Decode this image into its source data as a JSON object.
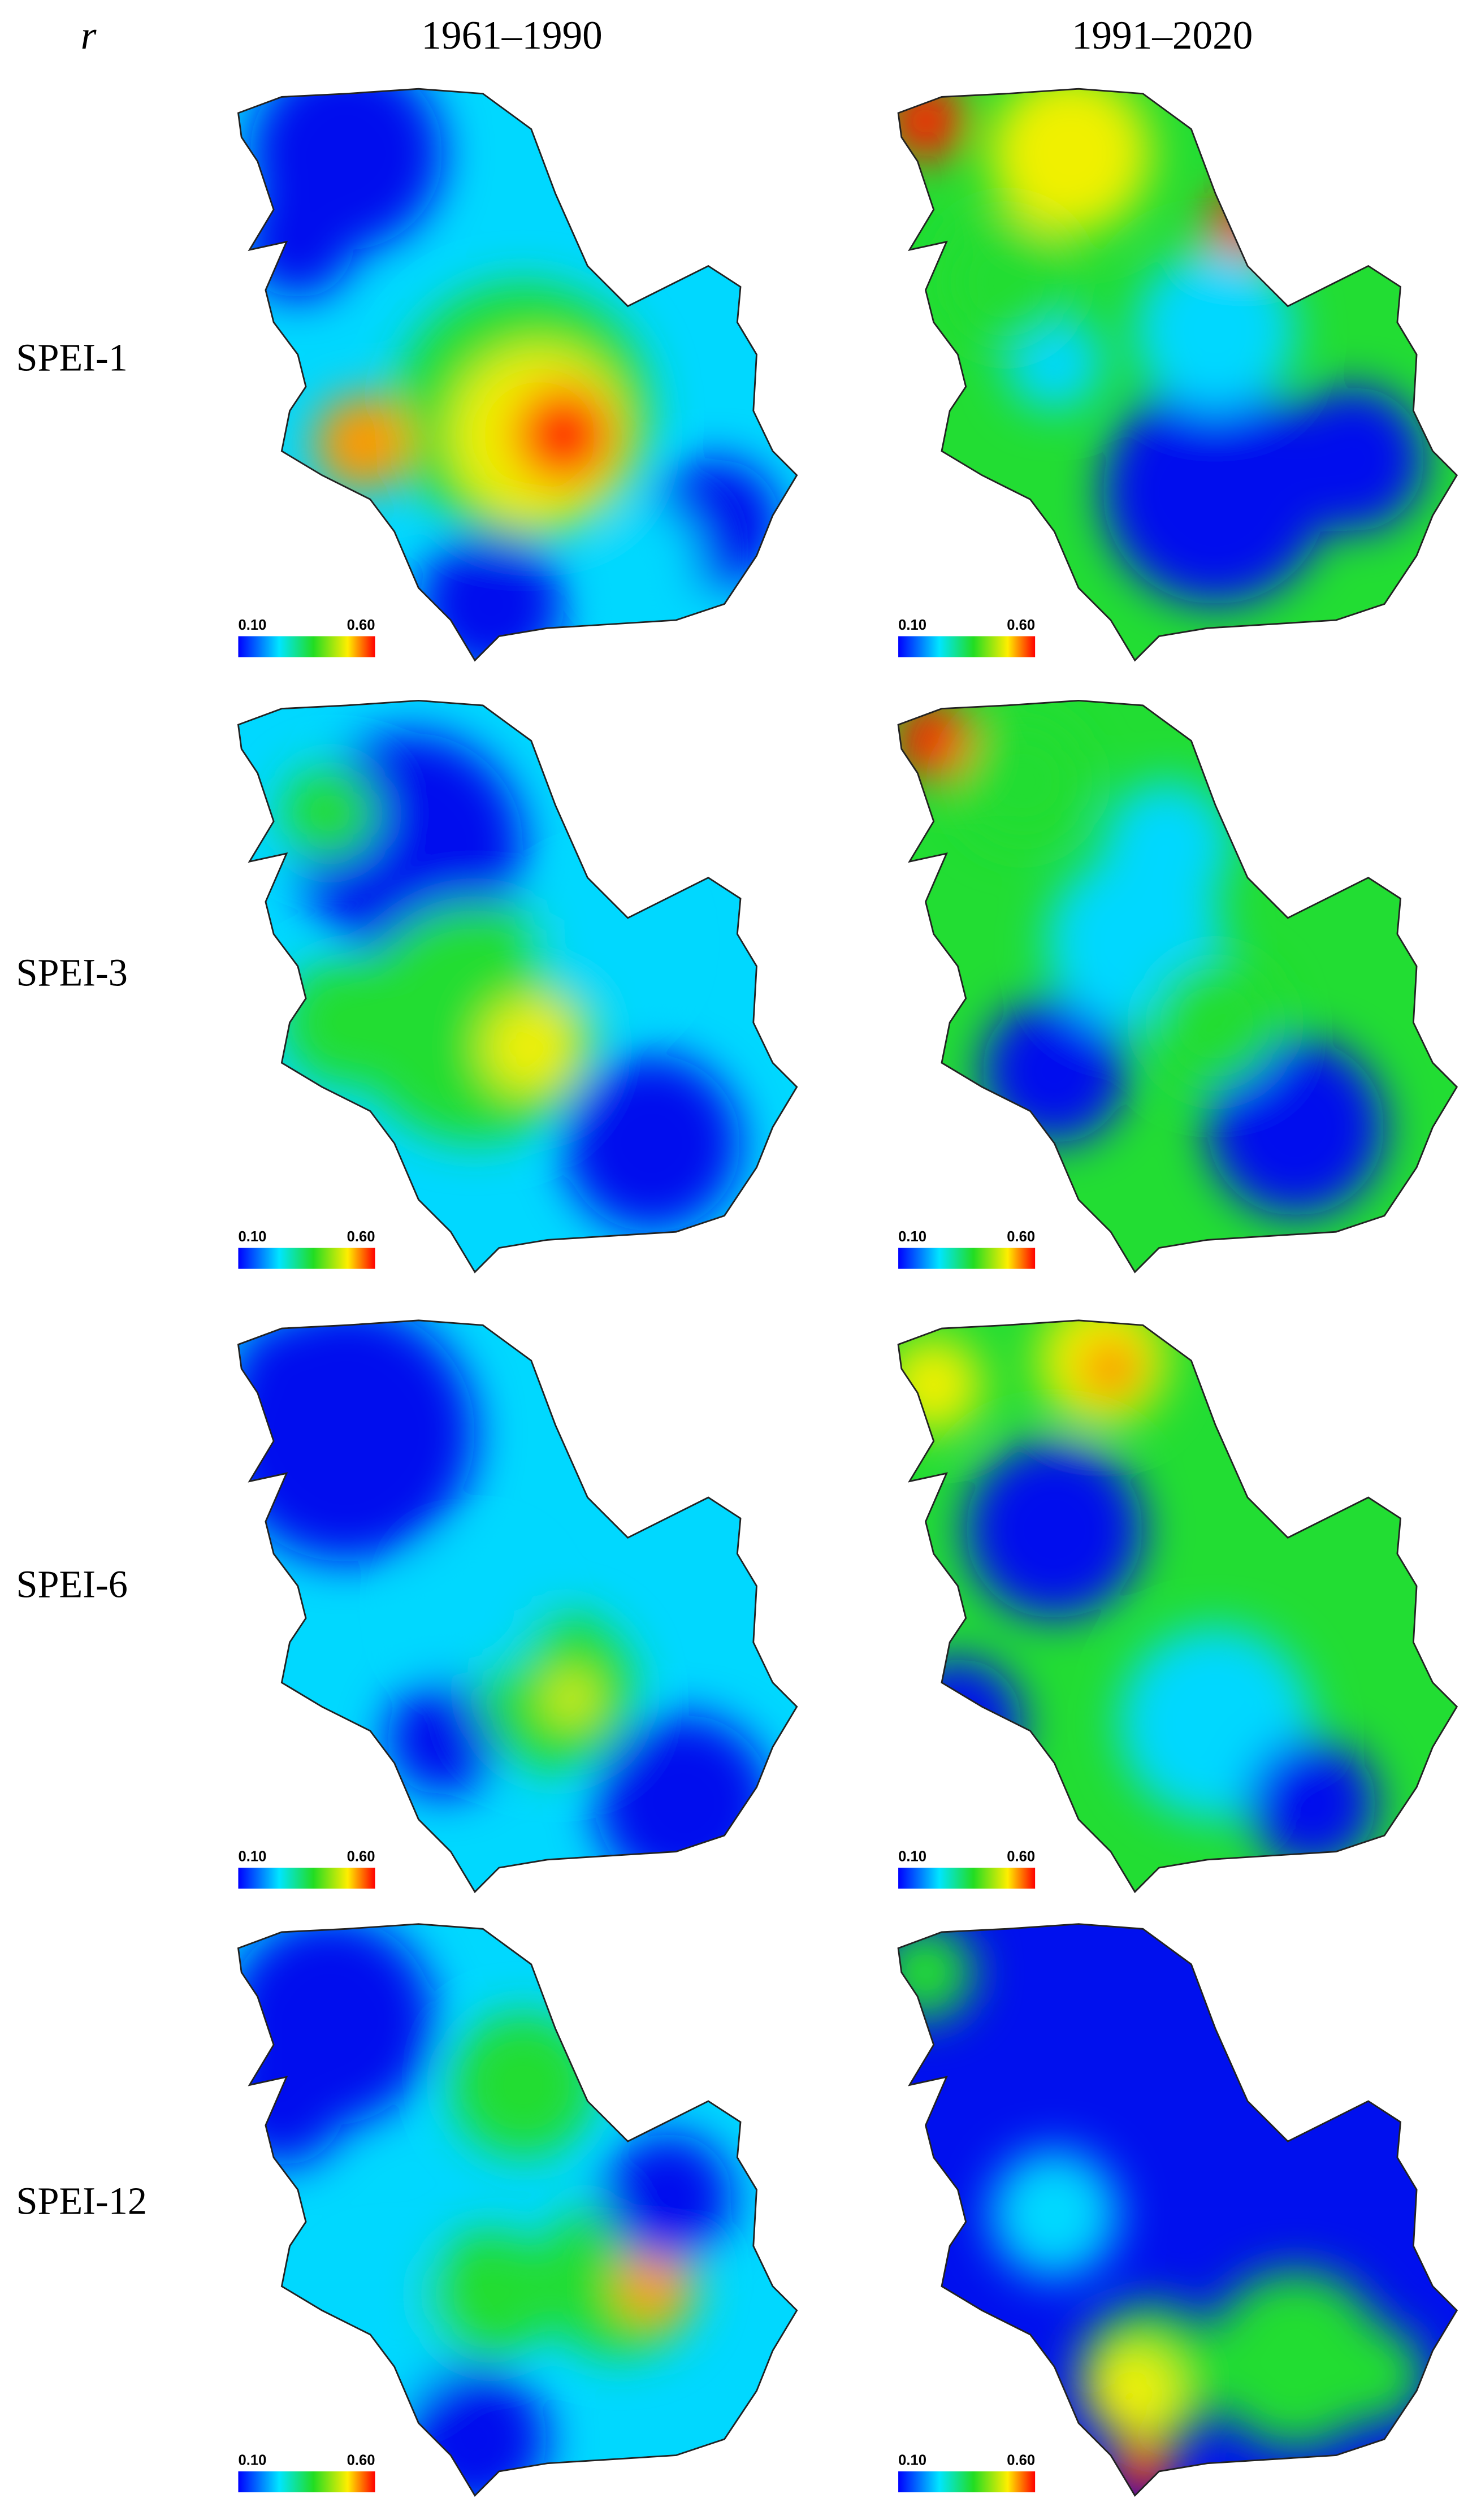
{
  "header": {
    "corner": "r",
    "columns": [
      "1961–1990",
      "1991–2020"
    ]
  },
  "rows": [
    {
      "label": "SPEI-1",
      "panels": [
        {
          "scale_min": "0.10",
          "scale_max": "0.60"
        },
        {
          "scale_min": "0.10",
          "scale_max": "0.60"
        }
      ]
    },
    {
      "label": "SPEI-3",
      "panels": [
        {
          "scale_min": "0.10",
          "scale_max": "0.60"
        },
        {
          "scale_min": "0.10",
          "scale_max": "0.60"
        }
      ]
    },
    {
      "label": "SPEI-6",
      "panels": [
        {
          "scale_min": "0.10",
          "scale_max": "0.60"
        },
        {
          "scale_min": "0.10",
          "scale_max": "0.60"
        }
      ]
    },
    {
      "label": "SPEI-12",
      "panels": [
        {
          "scale_min": "0.10",
          "scale_max": "0.60"
        },
        {
          "scale_min": "0.10",
          "scale_max": "0.60"
        }
      ]
    }
  ]
}
